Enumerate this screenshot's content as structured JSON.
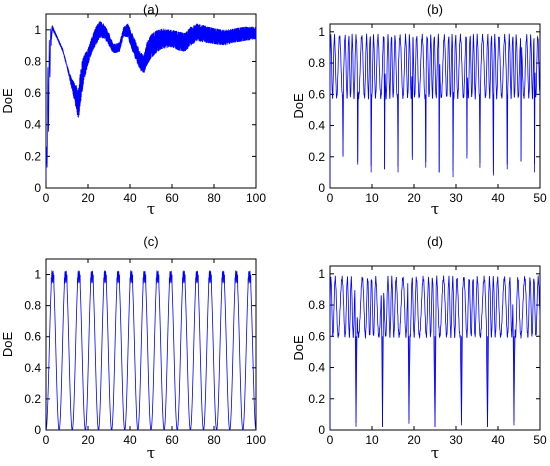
{
  "chart_data": [
    {
      "type": "line",
      "title": "(a)",
      "xlabel": "τ",
      "ylabel": "DoE",
      "xlim": [
        0,
        100
      ],
      "ylim": [
        0,
        1.1
      ],
      "xticks": [
        "0",
        "20",
        "40",
        "60",
        "80",
        "100"
      ],
      "yticks": [
        "0",
        "0.2",
        "0.4",
        "0.6",
        "0.8",
        "1"
      ],
      "grid": false,
      "color": "#0000ff",
      "envelope": {
        "x": [
          0,
          1,
          2,
          3,
          5,
          8,
          10,
          12,
          14,
          15.5,
          16,
          17,
          18,
          20,
          22,
          24,
          26,
          28,
          30,
          32,
          35,
          37,
          39,
          41,
          43,
          45,
          46.5,
          48,
          50,
          53,
          56,
          60,
          63,
          66,
          69,
          72,
          75,
          80,
          85,
          90,
          95,
          100
        ],
        "y_upper": [
          0.1,
          0.85,
          1.0,
          1.03,
          0.97,
          0.88,
          0.78,
          0.7,
          0.66,
          0.63,
          0.7,
          0.8,
          0.84,
          0.88,
          0.96,
          1.03,
          1.06,
          1.03,
          0.98,
          0.91,
          0.92,
          1.02,
          1.04,
          0.98,
          0.92,
          0.86,
          0.84,
          0.92,
          0.97,
          1.0,
          1.01,
          1.0,
          0.99,
          0.98,
          1.02,
          1.04,
          1.03,
          1.01,
          1.0,
          1.01,
          1.02,
          1.02
        ],
        "y_lower": [
          0.0,
          0.25,
          0.75,
          1.0,
          0.95,
          0.86,
          0.76,
          0.64,
          0.52,
          0.42,
          0.48,
          0.58,
          0.67,
          0.78,
          0.86,
          0.91,
          0.95,
          0.94,
          0.9,
          0.85,
          0.86,
          0.96,
          0.95,
          0.87,
          0.8,
          0.74,
          0.72,
          0.77,
          0.82,
          0.86,
          0.88,
          0.89,
          0.87,
          0.86,
          0.9,
          0.93,
          0.92,
          0.91,
          0.9,
          0.92,
          0.93,
          0.94
        ]
      }
    },
    {
      "type": "line",
      "title": "(b)",
      "xlabel": "τ",
      "ylabel": "DoE",
      "xlim": [
        0,
        50
      ],
      "ylim": [
        0,
        1.05
      ],
      "xticks": [
        "0",
        "10",
        "20",
        "30",
        "40",
        "50"
      ],
      "yticks": [
        "0",
        "0.2",
        "0.4",
        "0.6",
        "0.8",
        "1"
      ],
      "grid": false,
      "color": "#0000ff",
      "dips": {
        "x": [
          3.1,
          6.6,
          9.8,
          13.0,
          16.2,
          19.6,
          22.8,
          26.0,
          29.3,
          32.6,
          35.7,
          38.9,
          42.2,
          45.5,
          48.7
        ],
        "y": [
          0.2,
          0.15,
          0.1,
          0.12,
          0.1,
          0.18,
          0.13,
          0.1,
          0.07,
          0.19,
          0.13,
          0.08,
          0.12,
          0.17,
          0.1
        ]
      }
    },
    {
      "type": "line",
      "title": "(c)",
      "xlabel": "τ",
      "ylabel": "DoE",
      "xlim": [
        0,
        100
      ],
      "ylim": [
        0,
        1.1
      ],
      "xticks": [
        "0",
        "20",
        "40",
        "60",
        "80",
        "100"
      ],
      "yticks": [
        "0",
        "0.2",
        "0.4",
        "0.6",
        "0.8",
        "1"
      ],
      "grid": false,
      "color": "#0000ff",
      "period": 6.25,
      "peak": 1.03,
      "plateau": 0.94
    },
    {
      "type": "line",
      "title": "(d)",
      "xlabel": "τ",
      "ylabel": "DoE",
      "xlim": [
        0,
        50
      ],
      "ylim": [
        0,
        1.05
      ],
      "xticks": [
        "0",
        "10",
        "20",
        "30",
        "40",
        "50"
      ],
      "yticks": [
        "0",
        "0.2",
        "0.4",
        "0.6",
        "0.8",
        "1"
      ],
      "grid": false,
      "color": "#0000ff",
      "dips": {
        "x": [
          6.2,
          12.5,
          18.8,
          25.0,
          31.3,
          37.5,
          43.8
        ],
        "y": [
          0.02,
          0.02,
          0.04,
          0.02,
          0.03,
          0.02,
          0.03
        ]
      }
    }
  ]
}
